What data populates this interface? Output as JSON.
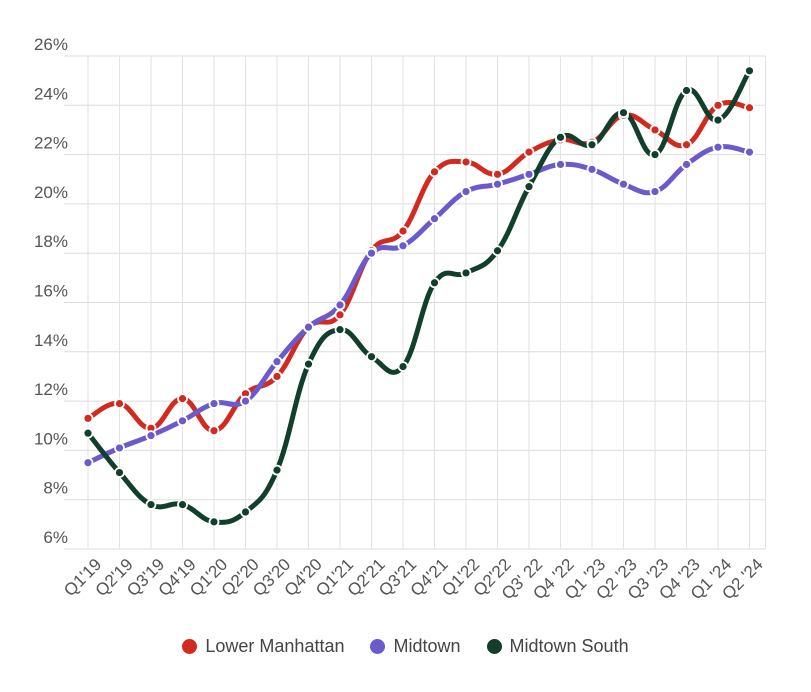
{
  "chart_data": {
    "type": "line",
    "title": "",
    "xlabel": "",
    "ylabel": "",
    "ylim": [
      6,
      26
    ],
    "y_ticks": [
      "6%",
      "8%",
      "10%",
      "12%",
      "14%",
      "16%",
      "18%",
      "20%",
      "22%",
      "24%",
      "26%"
    ],
    "categories": [
      "Q1'19",
      "Q2'19",
      "Q3'19",
      "Q4'19",
      "Q1'20",
      "Q2'20",
      "Q3'20",
      "Q4'20",
      "Q1'21",
      "Q2'21",
      "Q3'21",
      "Q4'21",
      "Q1'22",
      "Q2'22",
      "Q3' 22",
      "Q4 '22",
      "Q1 '23",
      "Q2 '23",
      "Q3 '23",
      "Q4 '23",
      "Q1 '24",
      "Q2 '24"
    ],
    "grid": true,
    "legend_position": "bottom",
    "series": [
      {
        "name": "Lower Manhattan",
        "color": "#d32a20",
        "values": [
          11.3,
          11.9,
          10.9,
          12.1,
          10.8,
          12.3,
          13.0,
          15.0,
          15.5,
          18.1,
          18.9,
          21.3,
          21.7,
          21.2,
          22.1,
          22.6,
          22.5,
          23.6,
          23.0,
          22.4,
          24.0,
          23.9
        ]
      },
      {
        "name": "Midtown",
        "color": "#6a5acd",
        "values": [
          9.5,
          10.1,
          10.6,
          11.2,
          11.9,
          12.0,
          13.6,
          15.0,
          15.9,
          18.0,
          18.3,
          19.4,
          20.5,
          20.8,
          21.2,
          21.6,
          21.4,
          20.8,
          20.5,
          21.6,
          22.3,
          22.1
        ]
      },
      {
        "name": "Midtown South",
        "color": "#123f2c",
        "values": [
          10.7,
          9.1,
          7.8,
          7.8,
          7.1,
          7.5,
          9.2,
          13.5,
          14.9,
          13.8,
          13.4,
          16.8,
          17.2,
          18.1,
          20.7,
          22.7,
          22.4,
          23.7,
          22.0,
          24.6,
          23.4,
          25.4
        ]
      }
    ]
  }
}
